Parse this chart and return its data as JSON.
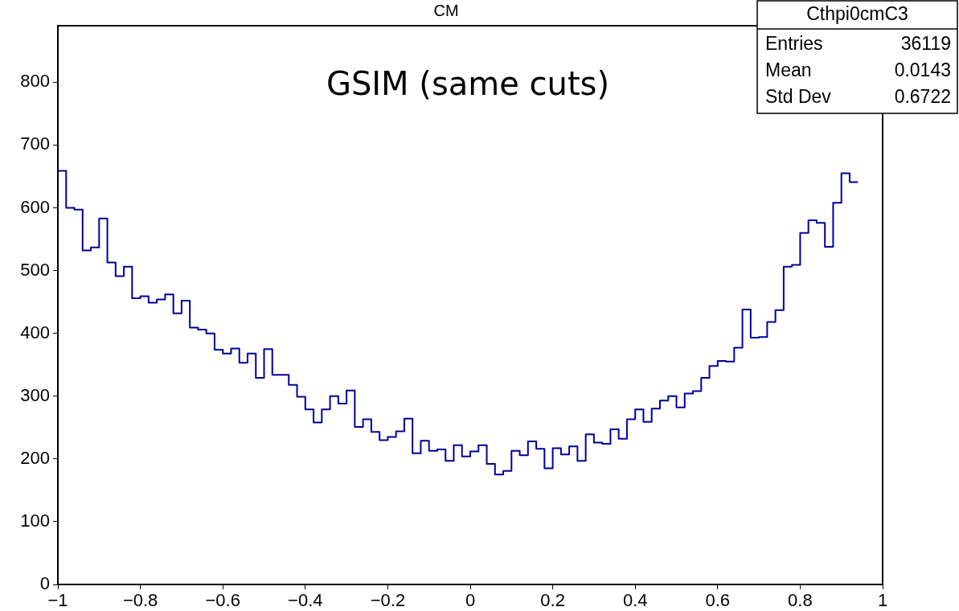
{
  "chart_data": {
    "type": "histogram",
    "title": "CM",
    "annotations": [
      "GSIM (same cuts)",
      "Cthpi0cmC3",
      "Entries 36119",
      "Mean 0.0143",
      "Std Dev 0.6722"
    ],
    "bins": [
      -1,
      -0.98,
      -0.96,
      -0.94,
      -0.92,
      -0.9,
      -0.88,
      -0.86,
      -0.84,
      -0.82,
      -0.8,
      -0.78,
      -0.76,
      -0.74,
      -0.72,
      -0.7,
      -0.68,
      -0.66,
      -0.64,
      -0.62,
      -0.6,
      -0.58,
      -0.56,
      -0.54,
      -0.52,
      -0.5,
      -0.48,
      -0.46,
      -0.44,
      -0.42,
      -0.4,
      -0.38,
      -0.36,
      -0.34,
      -0.32,
      -0.3,
      -0.28,
      -0.26,
      -0.24,
      -0.22,
      -0.2,
      -0.18,
      -0.16,
      -0.14,
      -0.12,
      -0.1,
      -0.08,
      -0.06,
      -0.04,
      -0.02,
      0,
      0.02,
      0.04,
      0.06,
      0.08,
      0.1,
      0.12,
      0.14,
      0.16,
      0.18,
      0.2,
      0.22,
      0.24,
      0.26,
      0.28,
      0.3,
      0.32,
      0.34,
      0.36,
      0.38,
      0.4,
      0.42,
      0.44,
      0.46,
      0.48,
      0.5,
      0.52,
      0.54,
      0.56,
      0.58,
      0.6,
      0.62,
      0.64,
      0.66,
      0.68,
      0.7,
      0.72,
      0.74,
      0.76,
      0.78,
      0.8,
      0.82,
      0.84,
      0.86,
      0.88,
      0.9,
      0.92,
      0.94
    ],
    "values": [
      659,
      600,
      597,
      532,
      537,
      583,
      513,
      491,
      506,
      456,
      459,
      449,
      454,
      462,
      432,
      452,
      409,
      406,
      400,
      374,
      368,
      376,
      353,
      368,
      329,
      375,
      334,
      334,
      318,
      299,
      279,
      258,
      279,
      300,
      288,
      309,
      251,
      263,
      243,
      230,
      235,
      244,
      264,
      209,
      229,
      213,
      215,
      197,
      222,
      204,
      212,
      222,
      192,
      175,
      181,
      213,
      206,
      228,
      216,
      185,
      217,
      207,
      220,
      197,
      239,
      226,
      224,
      247,
      232,
      263,
      279,
      259,
      280,
      293,
      300,
      282,
      304,
      308,
      329,
      348,
      356,
      355,
      377,
      438,
      393,
      394,
      418,
      437,
      506,
      509,
      560,
      580,
      576,
      538,
      608,
      655,
      641
    ],
    "color": "#000099",
    "xlim": [
      -1,
      1
    ],
    "ylim": [
      0,
      890
    ],
    "xticks": [
      {
        "value": -1,
        "label": "−1"
      },
      {
        "value": -0.8,
        "label": "−0.8"
      },
      {
        "value": -0.6,
        "label": "−0.6"
      },
      {
        "value": -0.4,
        "label": "−0.4"
      },
      {
        "value": -0.2,
        "label": "−0.2"
      },
      0,
      0.2,
      0.4,
      0.6,
      0.8,
      1
    ],
    "yticks": [
      0,
      100,
      200,
      300,
      400,
      500,
      600,
      700,
      800
    ],
    "grid": false,
    "legend": false
  }
}
